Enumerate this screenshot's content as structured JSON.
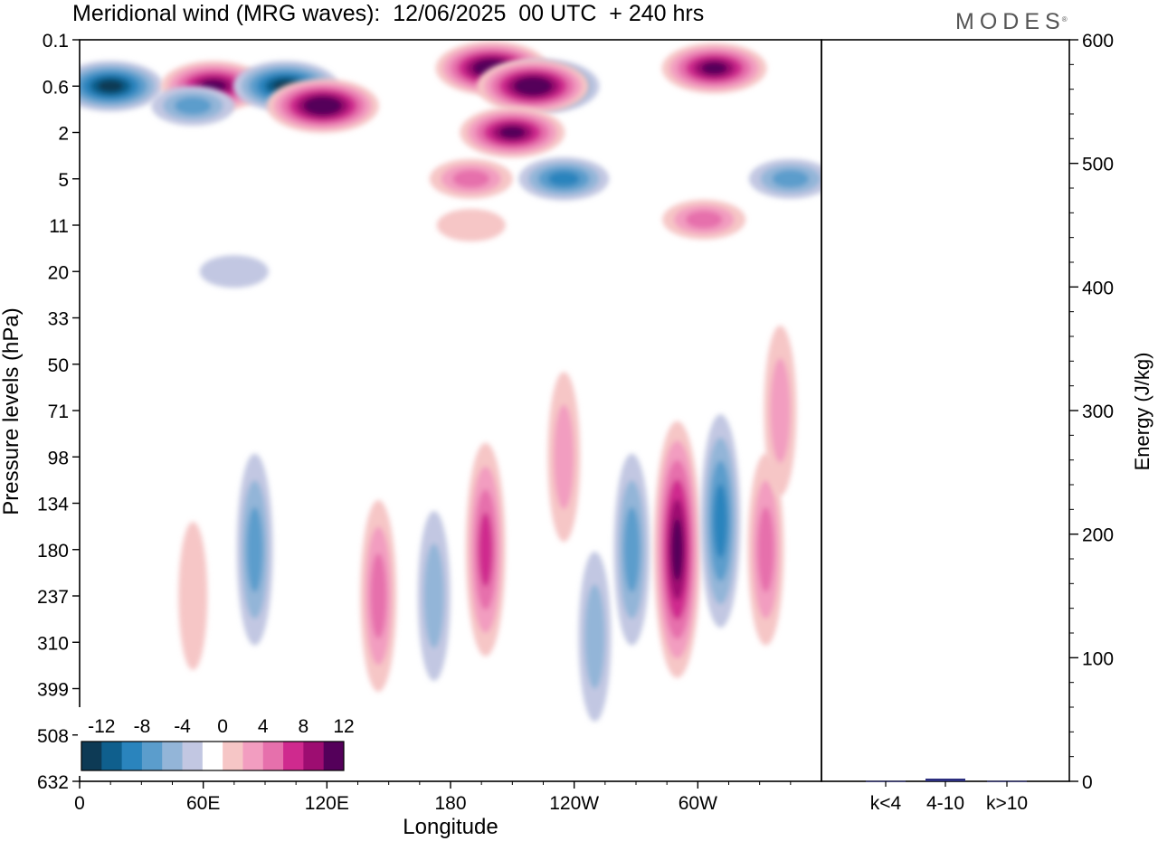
{
  "header": {
    "title": "Meridional wind (MRG waves):  12/06/2025  00 UTC  + 240 hrs",
    "logo": "MODES",
    "logo_mark": "®"
  },
  "chart_data": [
    {
      "type": "heatmap",
      "variable": "Meridional wind (MRG waves)",
      "xlabel": "Longitude",
      "ylabel": "Pressure levels (hPa)",
      "x_ticks": [
        "0",
        "60E",
        "120E",
        "180",
        "120W",
        "60W"
      ],
      "y_ticks": [
        "0.1",
        "0.6",
        "2",
        "5",
        "11",
        "20",
        "33",
        "50",
        "71",
        "98",
        "134",
        "180",
        "237",
        "310",
        "399",
        "508",
        "632"
      ],
      "colorbar": {
        "tick_labels": [
          "-12",
          "-8",
          "-4",
          "0",
          "4",
          "8",
          "12"
        ],
        "levels": [
          -14,
          -12,
          -10,
          -8,
          -6,
          -4,
          -2,
          2,
          4,
          6,
          8,
          10,
          12,
          14
        ],
        "colors": [
          "#0d3a55",
          "#0f5f8d",
          "#2a84bd",
          "#5b9dcc",
          "#93b5d8",
          "#c2c7e2",
          "#ffffff",
          "#f6c6c6",
          "#f29dc0",
          "#e670ac",
          "#cf2a8e",
          "#9d0d71",
          "#54005a"
        ]
      },
      "features": [
        {
          "x_deg": 15,
          "level": "0.6",
          "v": -12
        },
        {
          "x_deg": 65,
          "level": "0.6",
          "v": 12
        },
        {
          "x_deg": 100,
          "level": "0.6",
          "v": -12
        },
        {
          "x_deg": 200,
          "level": "0.3",
          "v": 14
        },
        {
          "x_deg": 225,
          "level": "0.6",
          "v": -14
        },
        {
          "x_deg": 220,
          "level": "0.6",
          "v": 14
        },
        {
          "x_deg": 308,
          "level": "0.3",
          "v": 12
        },
        {
          "x_deg": 118,
          "level": "1",
          "v": 14
        },
        {
          "x_deg": 210,
          "level": "2",
          "v": 12
        },
        {
          "x_deg": 55,
          "level": "1",
          "v": -6
        },
        {
          "x_deg": 190,
          "level": "5",
          "v": 6
        },
        {
          "x_deg": 235,
          "level": "5",
          "v": -8
        },
        {
          "x_deg": 345,
          "level": "5",
          "v": -6
        },
        {
          "x_deg": 303,
          "level": "10",
          "v": 6
        },
        {
          "x_deg": 190,
          "level": "11",
          "v": 2
        },
        {
          "x_deg": 85,
          "level": "180",
          "v": -6
        },
        {
          "x_deg": 145,
          "level": "237",
          "v": 6
        },
        {
          "x_deg": 172,
          "level": "237",
          "v": -4
        },
        {
          "x_deg": 197,
          "level": "180",
          "v": 8
        },
        {
          "x_deg": 268,
          "level": "180",
          "v": -6
        },
        {
          "x_deg": 290,
          "level": "180",
          "v": 12
        },
        {
          "x_deg": 311,
          "level": "150",
          "v": -8
        },
        {
          "x_deg": 333,
          "level": "180",
          "v": 6
        },
        {
          "x_deg": 250,
          "level": "300",
          "v": -4
        },
        {
          "x_deg": 235,
          "level": "98",
          "v": 4
        },
        {
          "x_deg": 340,
          "level": "71",
          "v": 4
        },
        {
          "x_deg": 55,
          "level": "237",
          "v": 2
        },
        {
          "x_deg": 75,
          "level": "20",
          "v": -2
        }
      ]
    },
    {
      "type": "bar",
      "categories": [
        "k<4",
        "4-10",
        "k>10"
      ],
      "values": [
        0.3,
        2.2,
        0.3
      ],
      "ylabel": "Energy (J/kg)",
      "ylim": [
        0,
        600
      ],
      "y_ticks": [
        0,
        100,
        200,
        300,
        400,
        500,
        600
      ],
      "color": "#2b2e7e"
    }
  ]
}
